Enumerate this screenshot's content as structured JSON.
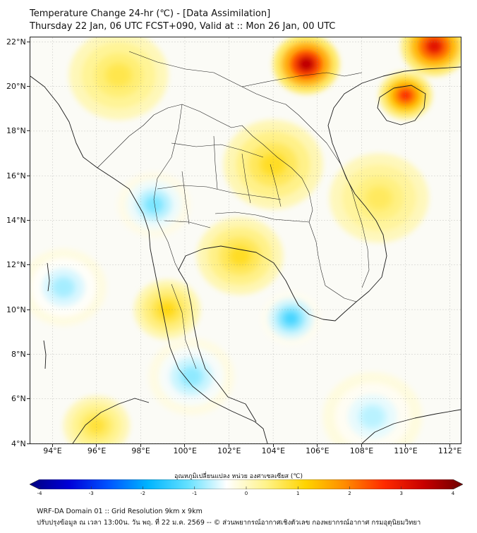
{
  "title": {
    "line1": "Temperature Change 24-hr (℃) - [Data Assimilation]",
    "line2": "Thursday 22 Jan, 06 UTC FCST+090, Valid at :: Mon 26 Jan, 00 UTC"
  },
  "map": {
    "lon_min": 93,
    "lon_max": 112.5,
    "lat_min": 4,
    "lat_max": 22.2,
    "lon_ticks": [
      {
        "value": 94,
        "label": "94°E"
      },
      {
        "value": 96,
        "label": "96°E"
      },
      {
        "value": 98,
        "label": "98°E"
      },
      {
        "value": 100,
        "label": "100°E"
      },
      {
        "value": 102,
        "label": "102°E"
      },
      {
        "value": 104,
        "label": "104°E"
      },
      {
        "value": 106,
        "label": "106°E"
      },
      {
        "value": 108,
        "label": "108°E"
      },
      {
        "value": 110,
        "label": "110°E"
      },
      {
        "value": 112,
        "label": "112°E"
      }
    ],
    "lat_ticks": [
      {
        "value": 22,
        "label": "22°N"
      },
      {
        "value": 20,
        "label": "20°N"
      },
      {
        "value": 18,
        "label": "18°N"
      },
      {
        "value": 16,
        "label": "16°N"
      },
      {
        "value": 14,
        "label": "14°N"
      },
      {
        "value": 12,
        "label": "12°N"
      },
      {
        "value": 10,
        "label": "10°N"
      },
      {
        "value": 8,
        "label": "8°N"
      },
      {
        "value": 6,
        "label": "6°N"
      },
      {
        "value": 4,
        "label": "4°N"
      }
    ],
    "anomalies": [
      {
        "lon": 105.5,
        "lat": 21.0,
        "value": 3.4,
        "spread": 1.0
      },
      {
        "lon": 111.3,
        "lat": 21.8,
        "value": 3.0,
        "spread": 1.0
      },
      {
        "lon": 110.0,
        "lat": 19.6,
        "value": 2.6,
        "spread": 0.8
      },
      {
        "lon": 104.8,
        "lat": 9.6,
        "value": -1.3,
        "spread": 0.9
      },
      {
        "lon": 98.6,
        "lat": 14.7,
        "value": -1.0,
        "spread": 1.1
      },
      {
        "lon": 94.5,
        "lat": 11.0,
        "value": -0.8,
        "spread": 1.3
      },
      {
        "lon": 100.3,
        "lat": 7.0,
        "value": -0.9,
        "spread": 1.3
      },
      {
        "lon": 108.5,
        "lat": 5.2,
        "value": -0.7,
        "spread": 1.5
      },
      {
        "lon": 104.0,
        "lat": 16.5,
        "value": 0.9,
        "spread": 1.5
      },
      {
        "lon": 102.5,
        "lat": 12.4,
        "value": 0.9,
        "spread": 1.3
      },
      {
        "lon": 99.2,
        "lat": 10.0,
        "value": 1.0,
        "spread": 1.0
      },
      {
        "lon": 108.8,
        "lat": 15.0,
        "value": 0.6,
        "spread": 1.5
      },
      {
        "lon": 96.0,
        "lat": 4.8,
        "value": 0.8,
        "spread": 1.0
      },
      {
        "lon": 97.0,
        "lat": 20.5,
        "value": 0.7,
        "spread": 1.5
      }
    ]
  },
  "colorbar": {
    "title": "อุณหภูมิเปลี่ยนแปลง หน่วย องศาเซลเซียส (℃)",
    "min": -4,
    "max": 4,
    "tick_labels": [
      "-4",
      "-3",
      "-2",
      "-1",
      "0",
      "1",
      "2",
      "3",
      "4"
    ],
    "colors": [
      "#00007f",
      "#0000d8",
      "#0054ff",
      "#00b4ff",
      "#62e0ff",
      "#ffffff",
      "#fff38a",
      "#ffd400",
      "#ff8c00",
      "#ff2a00",
      "#c80000",
      "#6e0000"
    ]
  },
  "footer": {
    "line1": "WRF-DA Domain 01 :: Grid Resolution 9km x 9km",
    "line2": "ปรับปรุงข้อมูล ณ เวลา 13:00น. วัน พฤ. ที่ 22 ม.ค. 2569 -- © ส่วนพยากรณ์อากาศเชิงตัวเลข กองพยากรณ์อากาศ กรมอุตุนิยมวิทยา"
  }
}
